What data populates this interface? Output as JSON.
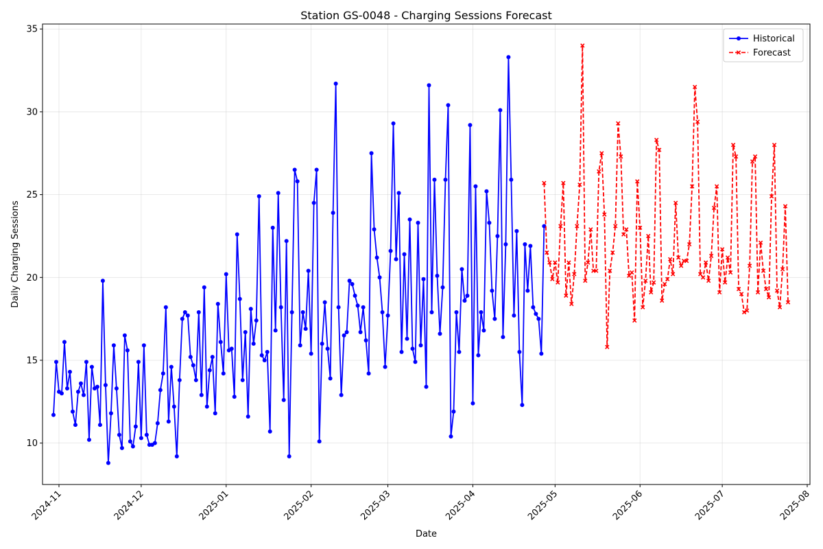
{
  "chart_data": {
    "type": "line",
    "title": "Station GS-0048 - Charging Sessions Forecast",
    "xlabel": "Date",
    "ylabel": "Daily Charging Sessions",
    "xlim": [
      "2024-10-26",
      "2025-08-02"
    ],
    "ylim": [
      7.5,
      35.3
    ],
    "grid": true,
    "legend_position": "top-right",
    "x_ticks": [
      "2024-11",
      "2024-12",
      "2025-01",
      "2025-02",
      "2025-03",
      "2025-04",
      "2025-05",
      "2025-06",
      "2025-07",
      "2025-08"
    ],
    "y_ticks": [
      10,
      15,
      20,
      25,
      30,
      35
    ],
    "series": [
      {
        "name": "Historical",
        "color": "#0000ff",
        "line_style": "solid",
        "marker": "circle",
        "start_date": "2024-10-30",
        "values": [
          11.7,
          14.9,
          13.1,
          13.0,
          16.1,
          13.3,
          14.3,
          11.9,
          11.1,
          13.1,
          13.6,
          12.9,
          14.9,
          10.2,
          14.6,
          13.3,
          13.4,
          11.1,
          19.8,
          13.5,
          8.8,
          11.8,
          15.9,
          13.3,
          10.5,
          9.7,
          16.5,
          15.6,
          10.1,
          9.8,
          11.0,
          14.9,
          10.3,
          15.9,
          10.5,
          9.9,
          9.9,
          10.0,
          11.2,
          13.2,
          14.2,
          18.2,
          11.3,
          14.6,
          12.2,
          9.2,
          13.8,
          17.5,
          17.9,
          17.7,
          15.2,
          14.7,
          13.8,
          17.9,
          12.9,
          19.4,
          12.2,
          14.4,
          15.2,
          11.8,
          18.4,
          16.1,
          14.2,
          20.2,
          15.6,
          15.7,
          12.8,
          22.6,
          18.7,
          13.8,
          16.7,
          11.6,
          18.1,
          16.0,
          17.4,
          24.9,
          15.3,
          15.0,
          15.5,
          10.7,
          23.0,
          16.8,
          25.1,
          18.2,
          12.6,
          22.2,
          9.2,
          17.9,
          26.5,
          25.8,
          15.9,
          17.9,
          16.9,
          20.4,
          15.4,
          24.5,
          26.5,
          10.1,
          16.0,
          18.5,
          15.7,
          13.9,
          23.9,
          31.7,
          18.2,
          12.9,
          16.5,
          16.7,
          19.8,
          19.6,
          18.9,
          18.3,
          16.7,
          18.2,
          16.2,
          14.2,
          27.5,
          22.9,
          21.2,
          20.0,
          17.9,
          14.6,
          17.7,
          21.6,
          29.3,
          21.1,
          25.1,
          15.5,
          21.4,
          16.3,
          23.5,
          15.7,
          14.9,
          23.3,
          15.9,
          19.9,
          13.4,
          31.6,
          17.9,
          25.9,
          20.1,
          16.6,
          19.4,
          25.9,
          30.4,
          10.4,
          11.9,
          17.9,
          15.5,
          20.5,
          18.6,
          18.9,
          29.2,
          12.4,
          25.5,
          15.3,
          17.9,
          16.8,
          25.2,
          23.3,
          19.2,
          17.5,
          22.5,
          30.1,
          16.4,
          22.0,
          33.3,
          25.9,
          17.7,
          22.8,
          15.5,
          12.3,
          22.0,
          19.2,
          21.9,
          18.2,
          17.8,
          17.5,
          15.4,
          23.1
        ]
      },
      {
        "name": "Forecast",
        "color": "#ff0000",
        "line_style": "dashed",
        "marker": "x",
        "start_date": "2025-04-27",
        "values": [
          25.7,
          21.5,
          20.9,
          19.9,
          20.9,
          19.7,
          23.1,
          25.7,
          18.9,
          20.9,
          18.4,
          20.2,
          23.1,
          25.6,
          34.0,
          19.8,
          20.9,
          22.9,
          20.4,
          20.4,
          26.4,
          27.5,
          23.8,
          15.8,
          20.4,
          21.5,
          23.1,
          29.3,
          27.3,
          22.6,
          22.9,
          20.1,
          20.3,
          17.4,
          25.8,
          23.0,
          18.2,
          19.8,
          22.5,
          19.1,
          19.7,
          28.3,
          27.7,
          18.6,
          19.6,
          19.9,
          21.1,
          20.2,
          24.5,
          21.2,
          20.7,
          21.0,
          21.0,
          22.0,
          25.5,
          31.5,
          29.4,
          20.2,
          20.0,
          20.9,
          19.8,
          21.3,
          24.2,
          25.5,
          19.1,
          21.7,
          19.7,
          21.2,
          20.3,
          28.0,
          27.3,
          19.3,
          19.0,
          17.9,
          18.0,
          20.7,
          27.0,
          27.3,
          19.1,
          22.1,
          20.4,
          19.3,
          18.8,
          24.9,
          28.0,
          19.2,
          18.2,
          20.5,
          24.3,
          18.5
        ]
      }
    ]
  }
}
